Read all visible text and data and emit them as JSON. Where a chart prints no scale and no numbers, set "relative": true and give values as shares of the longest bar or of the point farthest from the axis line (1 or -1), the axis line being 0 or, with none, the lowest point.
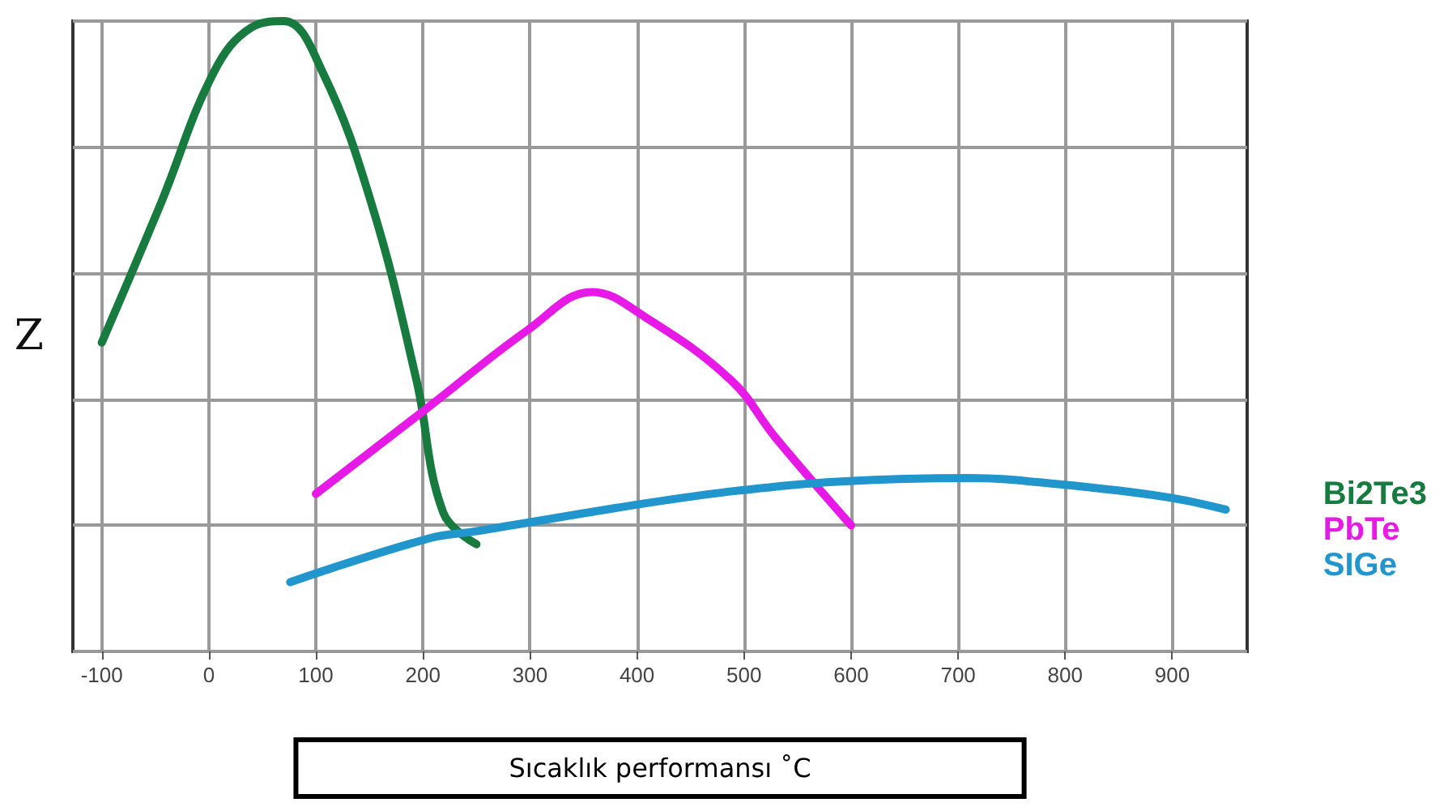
{
  "chart_data": {
    "type": "line",
    "relative": true,
    "ylabel": "Z",
    "xlabel": "Sıcaklık performansı ˚C",
    "xlim": [
      -127,
      970
    ],
    "xticks": [
      -100,
      0,
      100,
      200,
      300,
      400,
      500,
      600,
      700,
      800,
      900
    ],
    "grid": true,
    "legend": "right",
    "marker": "none",
    "line_style": "solid",
    "series": [
      {
        "name": "Bi2Te3",
        "color": "#177a3e",
        "x": [
          -100,
          -45,
          5,
          40,
          70,
          106,
          152,
          194,
          219,
          250
        ],
        "values": [
          0.49,
          0.71,
          0.92,
          0.99,
          1.0,
          0.92,
          0.71,
          0.43,
          0.22,
          0.17
        ]
      },
      {
        "name": "PbTe",
        "color": "#e619e6",
        "x": [
          100,
          207,
          298,
          358,
          408,
          488,
          529,
          600
        ],
        "values": [
          0.25,
          0.39,
          0.51,
          0.57,
          0.53,
          0.43,
          0.34,
          0.2
        ]
      },
      {
        "name": "SIGe",
        "color": "#2196cc",
        "x": [
          76,
          207,
          247,
          408,
          494,
          594,
          710,
          795,
          894,
          950
        ],
        "values": [
          0.11,
          0.18,
          0.19,
          0.235,
          0.255,
          0.27,
          0.275,
          0.265,
          0.245,
          0.225
        ]
      }
    ]
  }
}
